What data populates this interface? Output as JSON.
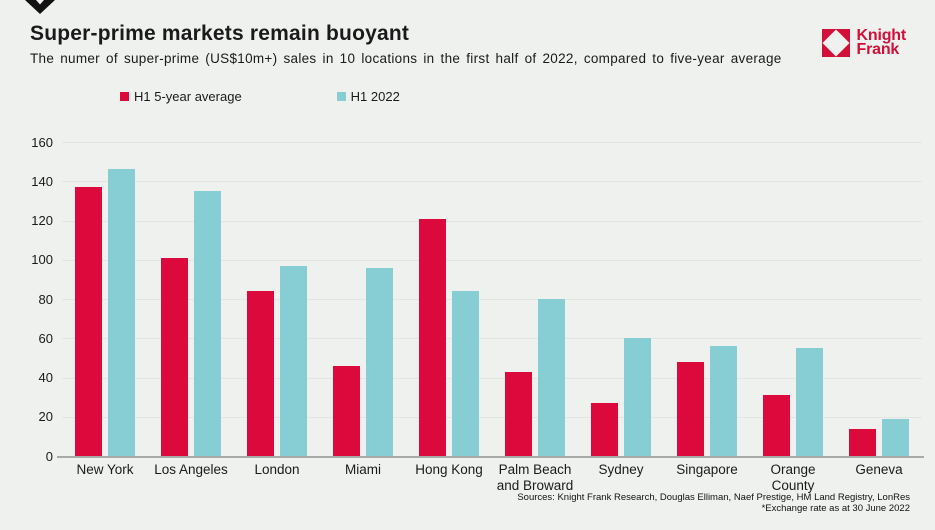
{
  "logo": {
    "name1": "Knight",
    "name2": "Frank",
    "color": "#d2113a"
  },
  "chart_data": {
    "type": "bar",
    "title": "Super-prime markets remain buoyant",
    "subtitle": "The numer of super-prime (US$10m+) sales in 10 locations in the first half of 2022, compared to five-year average",
    "categories": [
      "New York",
      "Los Angeles",
      "London",
      "Miami",
      "Hong Kong",
      "Palm Beach and Broward",
      "Sydney",
      "Singapore",
      "Orange County",
      "Geneva"
    ],
    "series": [
      {
        "name": "H1 5-year average",
        "color": "#dc0a3c",
        "values": [
          137,
          101,
          84,
          46,
          121,
          43,
          27,
          48,
          31,
          14
        ]
      },
      {
        "name": "H1 2022",
        "color": "#86ced4",
        "values": [
          146,
          135,
          97,
          96,
          84,
          80,
          60,
          56,
          55,
          19
        ]
      }
    ],
    "ylim": [
      0,
      160
    ],
    "ytick_step": 20,
    "grid": true,
    "legend_position": "top-left",
    "xlabel": "",
    "ylabel": ""
  },
  "footer": {
    "sources": "Sources: Knight Frank Research, Douglas Elliman, Naef Prestige, HM Land Registry, LonRes",
    "note": "*Exchange rate as at 30 June 2022"
  },
  "colors": {
    "background": "#eff1ef",
    "gridline": "#e2e6e3",
    "axis": "#a8aaa9",
    "text": "#1a1a1a",
    "arrow": "#111111"
  }
}
